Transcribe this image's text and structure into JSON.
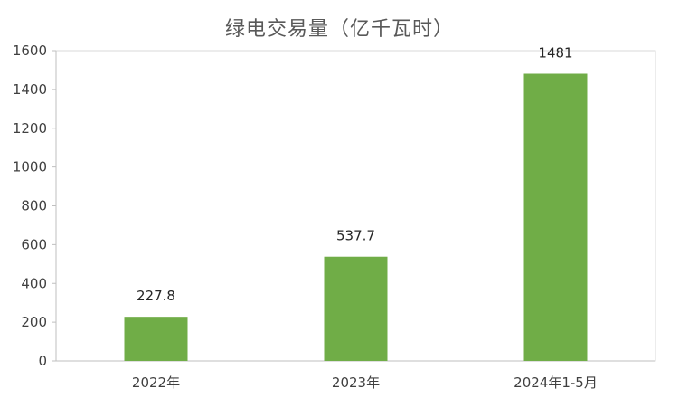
{
  "chart_data": {
    "type": "bar",
    "title": "绿电交易量（亿千瓦时）",
    "categories": [
      "2022年",
      "2023年",
      "2024年1-5月"
    ],
    "values": [
      227.8,
      537.7,
      1481
    ],
    "data_labels": [
      "227.8",
      "537.7",
      "1481"
    ],
    "xlabel": "",
    "ylabel": "",
    "ylim": [
      0,
      1600
    ],
    "yticks": [
      0,
      200,
      400,
      600,
      800,
      1000,
      1200,
      1400,
      1600
    ],
    "ytick_labels": [
      "0",
      "200",
      "400",
      "600",
      "800",
      "1000",
      "1200",
      "1400",
      "1600"
    ],
    "grid": false,
    "legend": "none",
    "bar_color": "#70AD47"
  }
}
